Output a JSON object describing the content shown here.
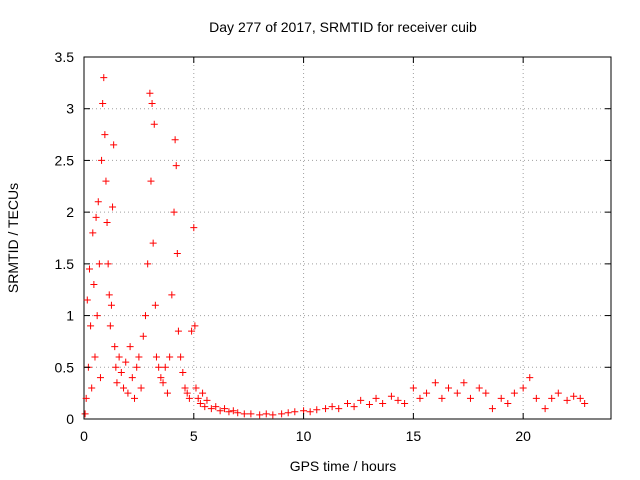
{
  "chart_data": {
    "type": "scatter",
    "title": "Day 277 of 2017, SRMTID for receiver cuib",
    "xlabel": "GPS time / hours",
    "ylabel": "SRMTID / TECUs",
    "xlim": [
      0,
      24
    ],
    "ylim": [
      0,
      3.5
    ],
    "grid": true,
    "marker": "+",
    "color": "#ff0000",
    "xticks": [
      {
        "value": 0,
        "label": "0"
      },
      {
        "value": 5,
        "label": "5"
      },
      {
        "value": 10,
        "label": "10"
      },
      {
        "value": 15,
        "label": "15"
      },
      {
        "value": 20,
        "label": "20"
      }
    ],
    "yticks": [
      {
        "value": 0,
        "label": "0"
      },
      {
        "value": 0.5,
        "label": "0.5"
      },
      {
        "value": 1,
        "label": "1"
      },
      {
        "value": 1.5,
        "label": "1.5"
      },
      {
        "value": 2,
        "label": "2"
      },
      {
        "value": 2.5,
        "label": "2.5"
      },
      {
        "value": 3,
        "label": "3"
      },
      {
        "value": 3.5,
        "label": "3.5"
      }
    ],
    "series": [
      {
        "name": "SRMTID",
        "points": [
          [
            0.05,
            0.05
          ],
          [
            0.1,
            0.2
          ],
          [
            0.15,
            1.15
          ],
          [
            0.2,
            0.5
          ],
          [
            0.25,
            1.45
          ],
          [
            0.3,
            0.9
          ],
          [
            0.35,
            0.3
          ],
          [
            0.4,
            1.8
          ],
          [
            0.45,
            1.3
          ],
          [
            0.5,
            0.6
          ],
          [
            0.55,
            1.95
          ],
          [
            0.6,
            1.0
          ],
          [
            0.65,
            2.1
          ],
          [
            0.7,
            1.5
          ],
          [
            0.75,
            0.4
          ],
          [
            0.8,
            2.5
          ],
          [
            0.85,
            3.05
          ],
          [
            0.9,
            3.3
          ],
          [
            0.95,
            2.75
          ],
          [
            1.0,
            2.3
          ],
          [
            1.05,
            1.9
          ],
          [
            1.1,
            1.5
          ],
          [
            1.15,
            1.2
          ],
          [
            1.2,
            0.9
          ],
          [
            1.25,
            1.1
          ],
          [
            1.3,
            2.05
          ],
          [
            1.35,
            2.65
          ],
          [
            1.4,
            0.7
          ],
          [
            1.45,
            0.5
          ],
          [
            1.5,
            0.35
          ],
          [
            1.6,
            0.6
          ],
          [
            1.7,
            0.45
          ],
          [
            1.8,
            0.3
          ],
          [
            1.9,
            0.55
          ],
          [
            2.0,
            0.25
          ],
          [
            2.1,
            0.7
          ],
          [
            2.2,
            0.4
          ],
          [
            2.3,
            0.2
          ],
          [
            2.4,
            0.5
          ],
          [
            2.5,
            0.6
          ],
          [
            2.6,
            0.3
          ],
          [
            2.7,
            0.8
          ],
          [
            2.8,
            1.0
          ],
          [
            2.9,
            1.5
          ],
          [
            3.0,
            3.15
          ],
          [
            3.05,
            2.3
          ],
          [
            3.1,
            3.05
          ],
          [
            3.15,
            1.7
          ],
          [
            3.2,
            2.85
          ],
          [
            3.25,
            1.1
          ],
          [
            3.3,
            0.6
          ],
          [
            3.4,
            0.5
          ],
          [
            3.5,
            0.4
          ],
          [
            3.6,
            0.35
          ],
          [
            3.7,
            0.5
          ],
          [
            3.8,
            0.25
          ],
          [
            3.9,
            0.6
          ],
          [
            4.0,
            1.2
          ],
          [
            4.1,
            2.0
          ],
          [
            4.15,
            2.7
          ],
          [
            4.2,
            2.45
          ],
          [
            4.25,
            1.6
          ],
          [
            4.3,
            0.85
          ],
          [
            4.4,
            0.6
          ],
          [
            4.5,
            0.45
          ],
          [
            4.6,
            0.3
          ],
          [
            4.7,
            0.25
          ],
          [
            4.8,
            0.2
          ],
          [
            4.9,
            0.85
          ],
          [
            5.0,
            1.85
          ],
          [
            5.05,
            0.9
          ],
          [
            5.1,
            0.3
          ],
          [
            5.2,
            0.2
          ],
          [
            5.3,
            0.15
          ],
          [
            5.4,
            0.25
          ],
          [
            5.5,
            0.12
          ],
          [
            5.6,
            0.18
          ],
          [
            5.8,
            0.1
          ],
          [
            6.0,
            0.12
          ],
          [
            6.2,
            0.08
          ],
          [
            6.4,
            0.1
          ],
          [
            6.6,
            0.07
          ],
          [
            6.8,
            0.08
          ],
          [
            7.0,
            0.06
          ],
          [
            7.3,
            0.05
          ],
          [
            7.6,
            0.05
          ],
          [
            8.0,
            0.04
          ],
          [
            8.3,
            0.05
          ],
          [
            8.6,
            0.04
          ],
          [
            9.0,
            0.05
          ],
          [
            9.3,
            0.06
          ],
          [
            9.6,
            0.07
          ],
          [
            10.0,
            0.08
          ],
          [
            10.3,
            0.07
          ],
          [
            10.6,
            0.09
          ],
          [
            11.0,
            0.1
          ],
          [
            11.3,
            0.12
          ],
          [
            11.6,
            0.1
          ],
          [
            12.0,
            0.15
          ],
          [
            12.3,
            0.12
          ],
          [
            12.6,
            0.18
          ],
          [
            13.0,
            0.14
          ],
          [
            13.3,
            0.2
          ],
          [
            13.6,
            0.15
          ],
          [
            14.0,
            0.22
          ],
          [
            14.3,
            0.18
          ],
          [
            14.6,
            0.15
          ],
          [
            15.0,
            0.3
          ],
          [
            15.3,
            0.2
          ],
          [
            15.6,
            0.25
          ],
          [
            16.0,
            0.35
          ],
          [
            16.3,
            0.2
          ],
          [
            16.6,
            0.3
          ],
          [
            17.0,
            0.25
          ],
          [
            17.3,
            0.35
          ],
          [
            17.6,
            0.2
          ],
          [
            18.0,
            0.3
          ],
          [
            18.3,
            0.25
          ],
          [
            18.6,
            0.1
          ],
          [
            19.0,
            0.2
          ],
          [
            19.3,
            0.15
          ],
          [
            19.6,
            0.25
          ],
          [
            20.0,
            0.3
          ],
          [
            20.3,
            0.4
          ],
          [
            20.6,
            0.2
          ],
          [
            21.0,
            0.1
          ],
          [
            21.3,
            0.2
          ],
          [
            21.6,
            0.25
          ],
          [
            22.0,
            0.18
          ],
          [
            22.3,
            0.22
          ],
          [
            22.6,
            0.2
          ],
          [
            22.8,
            0.15
          ]
        ]
      }
    ]
  }
}
